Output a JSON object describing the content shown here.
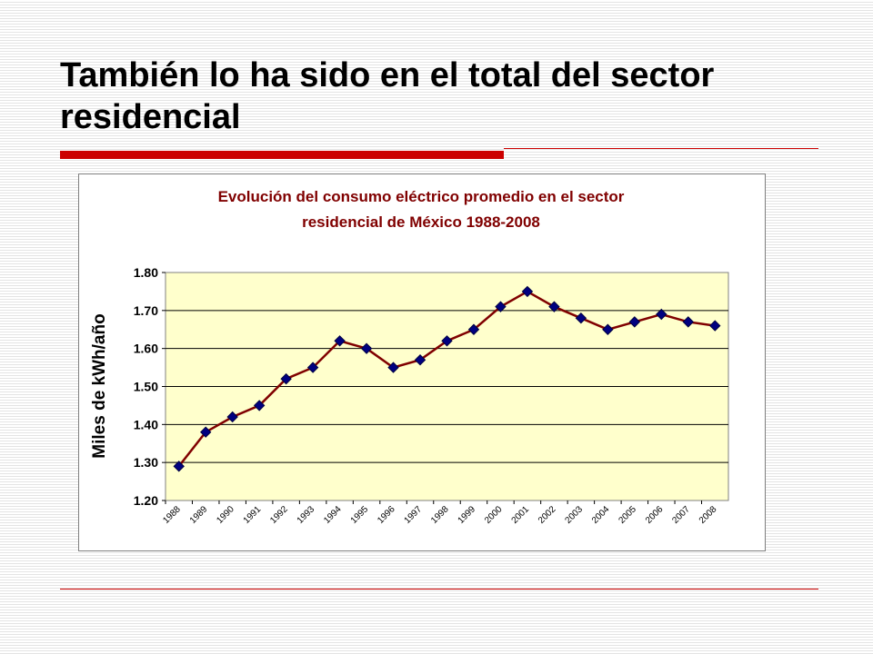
{
  "slide": {
    "title": "También lo ha sido en el total del sector residencial"
  },
  "colors": {
    "accent_rule": "#cc0000",
    "plot_background": "#ffffcc",
    "line": "#800000",
    "marker": "#000080",
    "chart_title": "#800000"
  },
  "chart_data": {
    "type": "line",
    "title_lines": [
      "Evolución del consumo eléctrico promedio en el sector",
      "residencial de México 1988-2008"
    ],
    "xlabel": "",
    "ylabel": "Miles de kWh/año",
    "ylim": [
      1.2,
      1.8
    ],
    "yticks": [
      "1.20",
      "1.30",
      "1.40",
      "1.50",
      "1.60",
      "1.70",
      "1.80"
    ],
    "grid": "horizontal",
    "legend": "none",
    "categories": [
      "1988",
      "1989",
      "1990",
      "1991",
      "1992",
      "1993",
      "1994",
      "1995",
      "1996",
      "1997",
      "1998",
      "1999",
      "2000",
      "2001",
      "2002",
      "2003",
      "2004",
      "2005",
      "2006",
      "2007",
      "2008"
    ],
    "values": [
      1.29,
      1.38,
      1.42,
      1.45,
      1.52,
      1.55,
      1.62,
      1.6,
      1.55,
      1.57,
      1.62,
      1.65,
      1.71,
      1.75,
      1.71,
      1.68,
      1.65,
      1.67,
      1.69,
      1.67,
      1.66
    ]
  }
}
